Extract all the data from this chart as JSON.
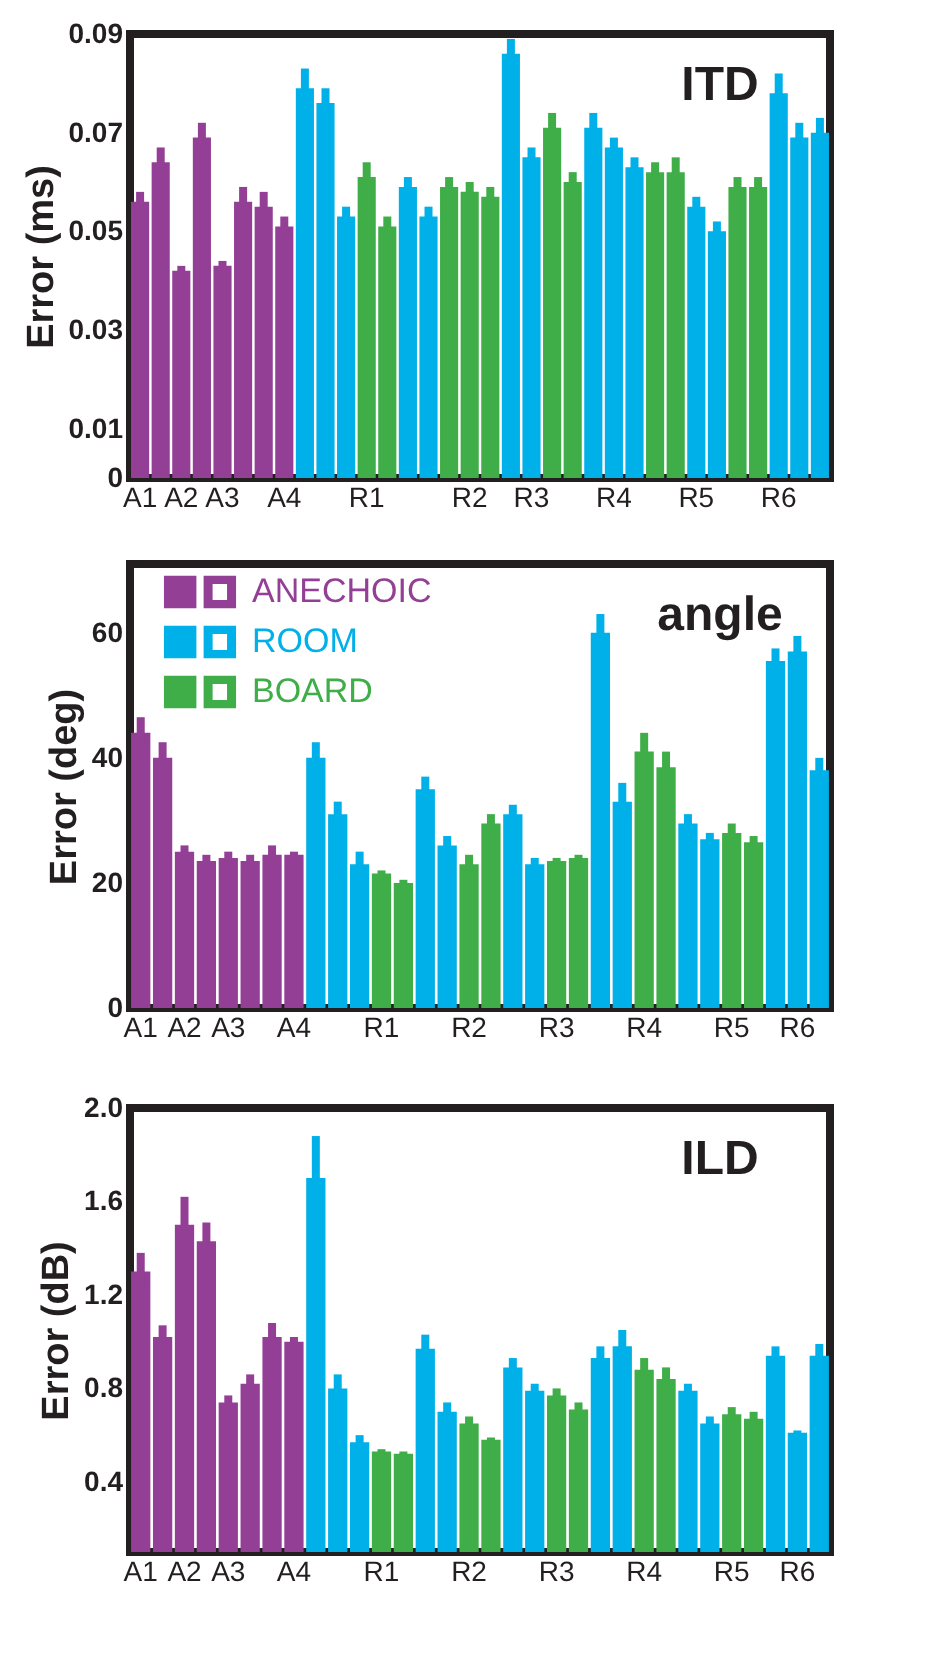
{
  "chart_data": [
    {
      "type": "bar",
      "title": "ITD",
      "ylabel": "Error (ms)",
      "ylim": [
        0,
        0.09
      ],
      "yticks": [
        0,
        0.01,
        0.03,
        0.05,
        0.07,
        0.09
      ],
      "grid": false,
      "categories": [
        "A1",
        null,
        "A2",
        null,
        "A3",
        null,
        null,
        "A4",
        null,
        null,
        null,
        "R1",
        null,
        null,
        null,
        null,
        "R2",
        null,
        null,
        "R3",
        null,
        null,
        null,
        "R4",
        null,
        null,
        null,
        "R5",
        null,
        null,
        null,
        "R6",
        null,
        null
      ],
      "series": [
        {
          "color": "#943f96",
          "values": [
            0.056,
            0.064,
            0.042,
            0.069,
            0.043,
            0.056,
            0.055,
            0.051,
            null,
            null,
            null,
            null,
            null,
            null,
            null,
            null,
            null,
            null,
            null,
            null,
            null,
            null,
            null,
            null,
            null,
            null,
            null,
            null,
            null,
            null,
            null,
            null,
            null,
            null
          ],
          "errors": [
            0.002,
            0.003,
            0.001,
            0.003,
            0.001,
            0.003,
            0.003,
            0.002,
            null,
            null,
            null,
            null,
            null,
            null,
            null,
            null,
            null,
            null,
            null,
            null,
            null,
            null,
            null,
            null,
            null,
            null,
            null,
            null,
            null,
            null,
            null,
            null,
            null,
            null
          ]
        },
        {
          "color": "#00b0e8",
          "values": [
            null,
            null,
            null,
            null,
            null,
            null,
            null,
            null,
            0.079,
            0.076,
            0.053,
            null,
            null,
            0.059,
            0.053,
            null,
            null,
            null,
            0.086,
            0.065,
            null,
            null,
            0.071,
            0.067,
            0.063,
            null,
            null,
            0.055,
            0.05,
            null,
            null,
            0.078,
            0.069,
            0.07
          ],
          "errors": [
            null,
            null,
            null,
            null,
            null,
            null,
            null,
            null,
            0.004,
            0.003,
            0.002,
            null,
            null,
            0.002,
            0.002,
            null,
            null,
            null,
            0.003,
            0.002,
            null,
            null,
            0.003,
            0.002,
            0.002,
            null,
            null,
            0.002,
            0.002,
            null,
            null,
            0.004,
            0.003,
            0.003
          ]
        },
        {
          "color": "#3fae49",
          "values": [
            null,
            null,
            null,
            null,
            null,
            null,
            null,
            null,
            null,
            null,
            null,
            0.061,
            0.051,
            null,
            null,
            0.059,
            0.058,
            0.057,
            null,
            null,
            0.071,
            0.06,
            null,
            null,
            null,
            0.062,
            0.062,
            null,
            null,
            0.059,
            0.059,
            null,
            null,
            null
          ],
          "errors": [
            null,
            null,
            null,
            null,
            null,
            null,
            null,
            null,
            null,
            null,
            null,
            0.003,
            0.002,
            null,
            null,
            0.002,
            0.002,
            0.002,
            null,
            null,
            0.003,
            0.002,
            null,
            null,
            null,
            0.002,
            0.003,
            null,
            null,
            0.002,
            0.002,
            null,
            null,
            null
          ]
        }
      ]
    },
    {
      "type": "bar",
      "title": "angle",
      "ylabel": "Error (deg)",
      "ylim": [
        0,
        71
      ],
      "yticks": [
        0,
        20,
        40,
        60
      ],
      "grid": false,
      "legend": "top left",
      "categories": [
        "A1",
        null,
        "A2",
        null,
        "A3",
        null,
        null,
        "A4",
        null,
        null,
        null,
        "R1",
        null,
        null,
        null,
        "R2",
        null,
        null,
        null,
        "R3",
        null,
        null,
        null,
        "R4",
        null,
        null,
        null,
        "R5",
        null,
        null,
        "R6",
        null
      ],
      "series": [
        {
          "name": "ANECHOIC",
          "color": "#943f96",
          "values": [
            44,
            40,
            25,
            23.5,
            24,
            23.5,
            24.5,
            24.5,
            null,
            null,
            null,
            null,
            null,
            null,
            null,
            null,
            null,
            null,
            null,
            null,
            null,
            null,
            null,
            null,
            null,
            null,
            null,
            null,
            null,
            null,
            null,
            null
          ],
          "errors": [
            2.5,
            2.5,
            1,
            1,
            1,
            1,
            1.5,
            0.5,
            null,
            null,
            null,
            null,
            null,
            null,
            null,
            null,
            null,
            null,
            null,
            null,
            null,
            null,
            null,
            null,
            null,
            null,
            null,
            null,
            null,
            null,
            null,
            null
          ]
        },
        {
          "name": "ROOM",
          "color": "#00b0e8",
          "values": [
            null,
            null,
            null,
            null,
            null,
            null,
            null,
            null,
            40,
            31,
            23,
            null,
            null,
            35,
            26,
            null,
            null,
            31,
            23,
            null,
            null,
            60,
            33,
            null,
            null,
            29.5,
            27,
            null,
            null,
            55.5,
            57,
            38
          ],
          "errors": [
            null,
            null,
            null,
            null,
            null,
            null,
            null,
            null,
            2.5,
            2,
            2,
            null,
            null,
            2,
            1.5,
            null,
            null,
            1.5,
            1,
            null,
            null,
            3,
            3,
            null,
            null,
            1.5,
            1,
            null,
            null,
            2,
            2.5,
            2
          ]
        },
        {
          "name": "BOARD",
          "color": "#3fae49",
          "values": [
            null,
            null,
            null,
            null,
            null,
            null,
            null,
            null,
            null,
            null,
            null,
            21.5,
            20,
            null,
            null,
            23,
            29.5,
            null,
            null,
            23.5,
            24,
            null,
            null,
            41,
            38.5,
            null,
            null,
            28,
            26.5,
            null,
            null,
            null
          ],
          "errors": [
            null,
            null,
            null,
            null,
            null,
            null,
            null,
            null,
            null,
            null,
            null,
            0.5,
            0.5,
            null,
            null,
            1.5,
            1.5,
            null,
            null,
            0.5,
            0.5,
            null,
            null,
            3,
            2.5,
            null,
            null,
            1.5,
            1,
            null,
            null,
            null
          ]
        }
      ]
    },
    {
      "type": "bar",
      "title": "ILD",
      "ylabel": "Error (dB)",
      "ylim": [
        0.1,
        2.0
      ],
      "yticks": [
        {
          "value": 0.4,
          "label": "0.4"
        },
        {
          "value": 0.8,
          "label": "0.8"
        },
        {
          "value": 1.2,
          "label": "1.2"
        },
        {
          "value": 1.6,
          "label": "1.6"
        },
        {
          "value": 2.0,
          "label": "2.0"
        }
      ],
      "grid": false,
      "categories": [
        "A1",
        null,
        "A2",
        null,
        "A3",
        null,
        null,
        "A4",
        null,
        null,
        null,
        "R1",
        null,
        null,
        null,
        "R2",
        null,
        null,
        null,
        "R3",
        null,
        null,
        null,
        "R4",
        null,
        null,
        null,
        "R5",
        null,
        null,
        "R6",
        null
      ],
      "series": [
        {
          "color": "#943f96",
          "values": [
            1.3,
            1.02,
            1.5,
            1.43,
            0.74,
            0.82,
            1.02,
            1.0,
            null,
            null,
            null,
            null,
            null,
            null,
            null,
            null,
            null,
            null,
            null,
            null,
            null,
            null,
            null,
            null,
            null,
            null,
            null,
            null,
            null,
            null,
            null,
            null
          ],
          "errors": [
            0.08,
            0.05,
            0.12,
            0.08,
            0.03,
            0.04,
            0.06,
            0.02,
            null,
            null,
            null,
            null,
            null,
            null,
            null,
            null,
            null,
            null,
            null,
            null,
            null,
            null,
            null,
            null,
            null,
            null,
            null,
            null,
            null,
            null,
            null,
            null
          ]
        },
        {
          "color": "#00b0e8",
          "values": [
            null,
            null,
            null,
            null,
            null,
            null,
            null,
            null,
            1.7,
            0.8,
            0.57,
            null,
            null,
            0.97,
            0.7,
            null,
            null,
            0.89,
            0.79,
            null,
            null,
            0.93,
            0.98,
            null,
            null,
            0.79,
            0.65,
            null,
            null,
            0.94,
            0.61,
            0.94
          ],
          "errors": [
            null,
            null,
            null,
            null,
            null,
            null,
            null,
            null,
            0.18,
            0.06,
            0.03,
            null,
            null,
            0.06,
            0.04,
            null,
            null,
            0.04,
            0.03,
            null,
            null,
            0.05,
            0.07,
            null,
            null,
            0.03,
            0.03,
            null,
            null,
            0.04,
            0.01,
            0.05
          ]
        },
        {
          "color": "#3fae49",
          "values": [
            null,
            null,
            null,
            null,
            null,
            null,
            null,
            null,
            null,
            null,
            null,
            0.53,
            0.52,
            null,
            null,
            0.65,
            0.58,
            null,
            null,
            0.77,
            0.71,
            null,
            null,
            0.88,
            0.84,
            null,
            null,
            0.69,
            0.67,
            null,
            null,
            null
          ],
          "errors": [
            null,
            null,
            null,
            null,
            null,
            null,
            null,
            null,
            null,
            null,
            null,
            0.01,
            0.01,
            null,
            null,
            0.03,
            0.01,
            null,
            null,
            0.03,
            0.03,
            null,
            null,
            0.05,
            0.05,
            null,
            null,
            0.03,
            0.03,
            null,
            null,
            null
          ]
        }
      ]
    }
  ]
}
